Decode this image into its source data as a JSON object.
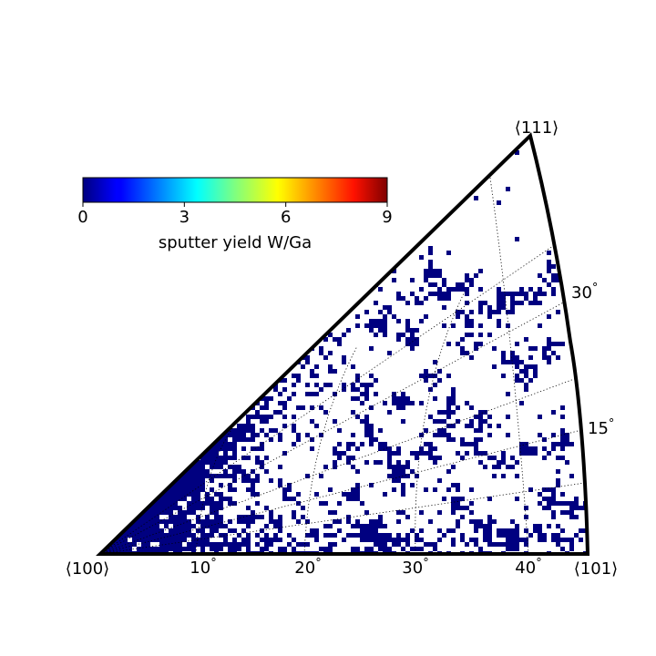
{
  "chart_data": {
    "type": "heatmap",
    "projection": "inverse pole figure (stereographic triangle)",
    "corners": {
      "c100": "⟨100⟩",
      "c101": "⟨101⟩",
      "c111": "⟨111⟩"
    },
    "grid": "dotted",
    "bottom_ticks": [
      {
        "value": 10,
        "label": "10$^\\circ$"
      },
      {
        "value": 20,
        "label": "20$^\\circ$"
      },
      {
        "value": 30,
        "label": "30$^\\circ$"
      },
      {
        "value": 40,
        "label": "40$^\\circ$"
      }
    ],
    "side_ticks": [
      {
        "value": 15,
        "label": "15$^\\circ$"
      },
      {
        "value": 30,
        "label": "30$^\\circ$"
      }
    ],
    "colorbar": {
      "colormap": "jet",
      "label": "sputter yield W/Ga",
      "range": [
        0,
        9
      ],
      "ticks": [
        "0",
        "3",
        "6",
        "9"
      ],
      "placement": "upper-left horizontal"
    },
    "observed_values": "Nearly all visible cells are dark navy (sputter yield ≈ 0); dense near ⟨100⟩ and along the ⟨100⟩–⟨111⟩ edge, scattered speckles elsewhere; remaining area is white (no data).",
    "cell_color": "#000080",
    "frame_color": "#000000"
  }
}
